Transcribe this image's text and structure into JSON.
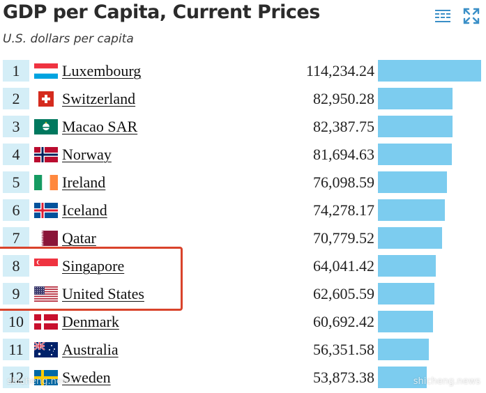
{
  "header": {
    "title": "GDP per Capita, Current Prices",
    "subtitle": "U.S. dollars per capita"
  },
  "toolbar": {
    "table_icon": "table-view-icon",
    "expand_icon": "expand-icon"
  },
  "chart_data": {
    "type": "bar",
    "title": "GDP per Capita, Current Prices",
    "subtitle": "U.S. dollars per capita",
    "xlim": [
      0,
      114234.24
    ],
    "rows": [
      {
        "rank": "1",
        "country": "Luxembourg",
        "value_label": "114,234.24",
        "value": 114234.24,
        "flag": "luxembourg"
      },
      {
        "rank": "2",
        "country": "Switzerland",
        "value_label": "82,950.28",
        "value": 82950.28,
        "flag": "switzerland"
      },
      {
        "rank": "3",
        "country": "Macao SAR",
        "value_label": "82,387.75",
        "value": 82387.75,
        "flag": "macao"
      },
      {
        "rank": "4",
        "country": "Norway",
        "value_label": "81,694.63",
        "value": 81694.63,
        "flag": "norway"
      },
      {
        "rank": "5",
        "country": "Ireland",
        "value_label": "76,098.59",
        "value": 76098.59,
        "flag": "ireland"
      },
      {
        "rank": "6",
        "country": "Iceland",
        "value_label": "74,278.17",
        "value": 74278.17,
        "flag": "iceland"
      },
      {
        "rank": "7",
        "country": "Qatar",
        "value_label": "70,779.52",
        "value": 70779.52,
        "flag": "qatar"
      },
      {
        "rank": "8",
        "country": "Singapore",
        "value_label": "64,041.42",
        "value": 64041.42,
        "flag": "singapore"
      },
      {
        "rank": "9",
        "country": "United States",
        "value_label": "62,605.59",
        "value": 62605.59,
        "flag": "united-states"
      },
      {
        "rank": "10",
        "country": "Denmark",
        "value_label": "60,692.42",
        "value": 60692.42,
        "flag": "denmark"
      },
      {
        "rank": "11",
        "country": "Australia",
        "value_label": "56,351.58",
        "value": 56351.58,
        "flag": "australia"
      },
      {
        "rank": "12",
        "country": "Sweden",
        "value_label": "53,873.38",
        "value": 53873.38,
        "flag": "sweden"
      }
    ],
    "highlighted_ranks": [
      "8",
      "9"
    ],
    "bar_color": "#7cccef",
    "rank_cell_color": "#d4eef7",
    "highlight_color": "#d9432b"
  },
  "watermark": {
    "left": "shicheng.news",
    "right": "shicheng.news"
  }
}
